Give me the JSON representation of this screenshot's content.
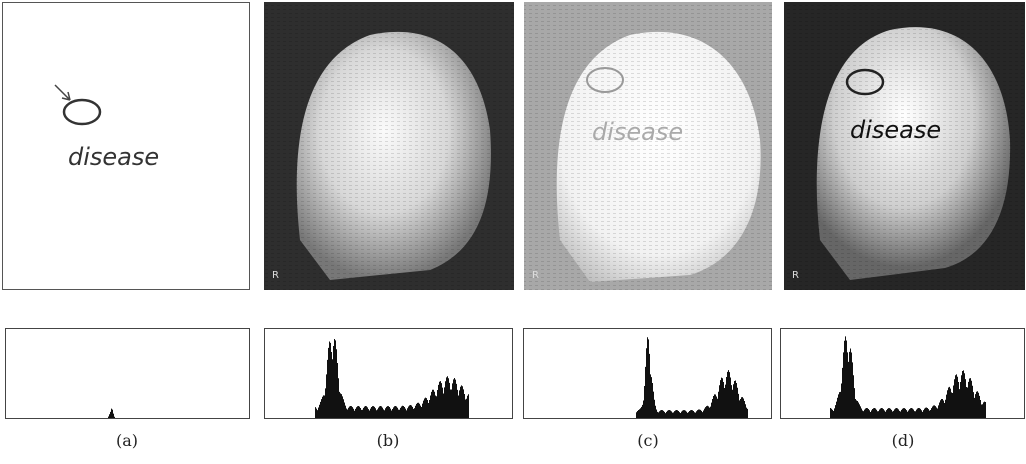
{
  "panels": [
    {
      "caption": "(a)",
      "annotation": "disease"
    },
    {
      "caption": "(b)",
      "marker": "R"
    },
    {
      "caption": "(c)",
      "annotation": "disease",
      "marker": "R"
    },
    {
      "caption": "(d)",
      "annotation": "disease",
      "marker": "R"
    }
  ]
}
